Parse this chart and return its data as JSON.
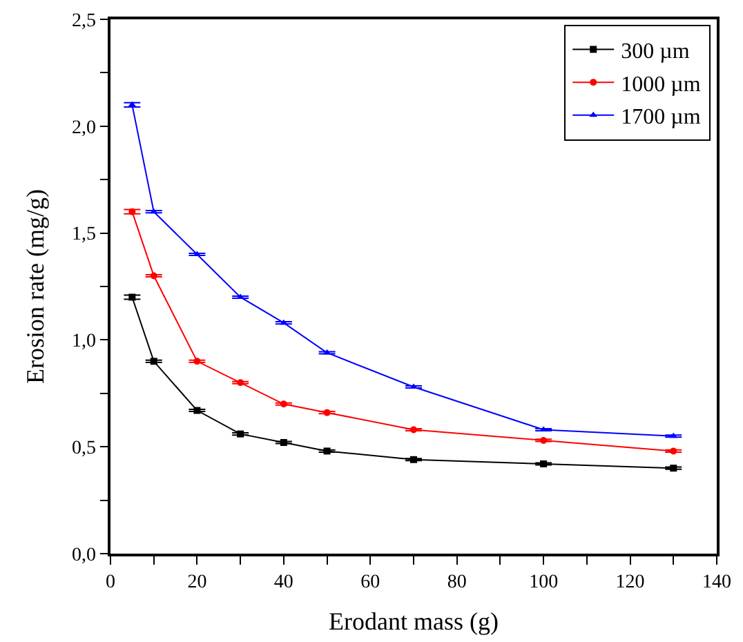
{
  "chart_data": {
    "type": "line",
    "xlabel": "Erodant mass (g)",
    "ylabel": "Erosion rate (mg/g)",
    "x": [
      5,
      10,
      20,
      30,
      40,
      50,
      70,
      100,
      130
    ],
    "series": [
      {
        "name": "300 µm",
        "color": "#000000",
        "marker": "square",
        "values": [
          1.2,
          0.9,
          0.67,
          0.56,
          0.52,
          0.48,
          0.44,
          0.42,
          0.4
        ],
        "errors": [
          0.01,
          0.005,
          0.005,
          0.005,
          0.005,
          0.005,
          0.005,
          0.005,
          0.005
        ]
      },
      {
        "name": "1000 µm",
        "color": "#ff0000",
        "marker": "circle",
        "values": [
          1.6,
          1.3,
          0.9,
          0.8,
          0.7,
          0.66,
          0.58,
          0.53,
          0.48
        ],
        "errors": [
          0.01,
          0.005,
          0.005,
          0.005,
          0.005,
          0.005,
          0.005,
          0.005,
          0.005
        ]
      },
      {
        "name": "1700 µm",
        "color": "#0000ff",
        "marker": "triangle",
        "values": [
          2.1,
          1.6,
          1.4,
          1.2,
          1.08,
          0.94,
          0.78,
          0.58,
          0.55
        ],
        "errors": [
          0.01,
          0.005,
          0.005,
          0.005,
          0.005,
          0.005,
          0.005,
          0.005,
          0.005
        ]
      }
    ],
    "xlim": [
      0,
      140
    ],
    "xticks": [
      0,
      {
        "value": 10,
        "label": null
      },
      20,
      {
        "value": 30,
        "label": null
      },
      40,
      {
        "value": 50,
        "label": null
      },
      60,
      {
        "value": 70,
        "label": null
      },
      80,
      {
        "value": 90,
        "label": null
      },
      100,
      {
        "value": 110,
        "label": null
      },
      120,
      {
        "value": 130,
        "label": null
      },
      140
    ],
    "ylim": [
      0,
      2.5
    ],
    "yticks": [
      {
        "value": 0,
        "label": "0,0"
      },
      {
        "value": 0.25,
        "label": null
      },
      {
        "value": 0.5,
        "label": "0,5"
      },
      {
        "value": 0.75,
        "label": null
      },
      {
        "value": 1.0,
        "label": "1,0"
      },
      {
        "value": 1.25,
        "label": null
      },
      {
        "value": 1.5,
        "label": "1,5"
      },
      {
        "value": 1.75,
        "label": null
      },
      {
        "value": 2.0,
        "label": "2,0"
      },
      {
        "value": 2.25,
        "label": null
      },
      {
        "value": 2.5,
        "label": "2,5"
      }
    ],
    "legend": "top right",
    "line_style": "solid"
  }
}
